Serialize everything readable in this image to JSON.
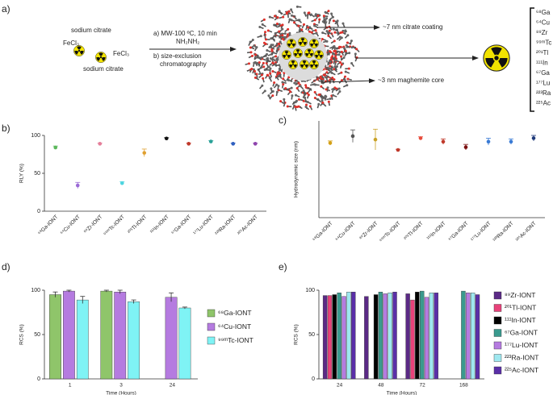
{
  "diagram": {
    "panel": "a)",
    "reagents": [
      "sodium citrate",
      "FeCl₃",
      "FeCl₃",
      "sodium citrate"
    ],
    "conditions": [
      "a) MW-100 ºC, 10 min",
      "NH₂NH₂",
      "b) size-exclusion",
      "chromatography"
    ],
    "labels": [
      "~7 nm citrate coating",
      "~3 nm maghemite core"
    ],
    "isotopes": [
      "⁶⁸Ga",
      "⁶⁴Cu",
      "⁸⁹Zr",
      "⁹⁹ᵐTc",
      "²⁰¹Tl",
      "¹¹¹In",
      "⁶⁷Ga",
      "¹⁷⁷Lu",
      "²²³Ra",
      "²²⁵Ac"
    ]
  },
  "chart_data": [
    {
      "type": "dot",
      "panel": "b)",
      "y_label": "RLY (%)",
      "categories": [
        "⁶⁸Ga-IONT",
        "⁶⁴Cu-IONT",
        "⁸⁹Zr-IONT",
        "⁹⁹ᵐTc-IONT",
        "²⁰¹Tl-IONT",
        "¹¹¹In-IONT",
        "⁶⁷Ga-IONT",
        "¹⁷⁷Lu-IONT",
        "²²³Ra-IONT",
        "²²⁵Ac-IONT"
      ],
      "values": [
        84,
        34,
        89,
        37,
        77,
        96,
        89,
        92,
        89,
        89
      ],
      "errors": [
        2,
        4,
        1,
        2,
        5,
        1,
        1,
        1,
        1,
        1
      ],
      "colors": [
        "#5cb85c",
        "#9b6ad6",
        "#e57f9a",
        "#4fd5e0",
        "#e0a030",
        "#111111",
        "#c0392b",
        "#2aa198",
        "#3060c0",
        "#8e44ad"
      ],
      "ylim": [
        0,
        100
      ],
      "yticks": [
        0,
        50,
        100
      ]
    },
    {
      "type": "dot",
      "panel": "c)",
      "y_label": "Hydrodynamic size (nm)",
      "categories": [
        "⁶⁸Ga-IONT",
        "⁶⁴Cu-IONT",
        "⁸⁹Zr-IONT",
        "⁹⁹ᵐTc-IONT",
        "²⁰¹Tl-IONT",
        "¹¹¹In-IONT",
        "⁶⁷Ga-IONT",
        "¹⁷⁷Lu-IONT",
        "²²³Ra-IONT",
        "²²⁵Ac-IONT"
      ],
      "values": [
        10.8,
        11.8,
        11.3,
        9.8,
        11.5,
        11.0,
        10.2,
        11.0,
        11.0,
        11.5
      ],
      "errors": [
        0.3,
        0.9,
        1.5,
        0.1,
        0.2,
        0.4,
        0.4,
        0.5,
        0.4,
        0.4
      ],
      "colors": [
        "#d4a017",
        "#555555",
        "#c9a227",
        "#c0392b",
        "#e74c3c",
        "#c0392b",
        "#7b1010",
        "#3a7bd5",
        "#3a7bd5",
        "#1f3a7a"
      ],
      "ylim": [
        0,
        14
      ],
      "yticks": []
    },
    {
      "type": "bar",
      "panel": "d)",
      "y_label": "RCS (%)",
      "x_label": "Time (Hours)",
      "categories": [
        "1",
        "3",
        "24"
      ],
      "series": [
        {
          "name": "⁶⁸Ga-IONT",
          "color": "#8fc56a",
          "values": [
            95,
            99,
            null
          ],
          "errors": [
            3,
            1,
            null
          ]
        },
        {
          "name": "⁶⁴Cu-IONT",
          "color": "#b57be0",
          "values": [
            99,
            98,
            92
          ],
          "errors": [
            1,
            2,
            5
          ]
        },
        {
          "name": "⁹⁹ᵐTc-IONT",
          "color": "#7ff3f5",
          "values": [
            89,
            87,
            80
          ],
          "errors": [
            4,
            2,
            1
          ]
        }
      ],
      "ylim": [
        0,
        100
      ],
      "yticks": [
        0,
        50,
        100
      ]
    },
    {
      "type": "bar",
      "panel": "e)",
      "y_label": "RCS (%)",
      "x_label": "Time (Hours)",
      "categories": [
        "24",
        "48",
        "72",
        "168"
      ],
      "series": [
        {
          "name": "⁸⁹Zr-IONT",
          "color": "#5b2a86",
          "values": [
            94,
            93,
            96,
            null
          ]
        },
        {
          "name": "²⁰¹Tl-IONT",
          "color": "#e8427a",
          "values": [
            94,
            null,
            89,
            null
          ]
        },
        {
          "name": "¹¹¹In-IONT",
          "color": "#000000",
          "values": [
            95,
            95,
            98,
            null
          ]
        },
        {
          "name": "⁶⁷Ga-IONT",
          "color": "#3a9a8e",
          "values": [
            97,
            98,
            99,
            99
          ]
        },
        {
          "name": "¹⁷⁷Lu-IONT",
          "color": "#b57be0",
          "values": [
            93,
            96,
            92,
            97
          ]
        },
        {
          "name": "²²³Ra-IONT",
          "color": "#9fe8f0",
          "values": [
            98,
            97,
            97,
            97
          ]
        },
        {
          "name": "²²⁵Ac-IONT",
          "color": "#5a2fa8",
          "values": [
            98,
            98,
            97,
            95
          ]
        }
      ],
      "ylim": [
        0,
        100
      ],
      "yticks": [
        0,
        50,
        100
      ]
    }
  ]
}
